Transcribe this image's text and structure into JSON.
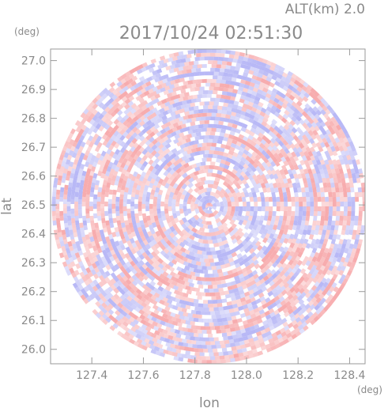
{
  "chart_data": {
    "type": "heatmap",
    "title": "2017/10/24 02:51:30",
    "subtitle": "ALT(km) 2.0",
    "xlabel": "lon",
    "ylabel": "lat",
    "x_unit": "(deg)",
    "y_unit": "(deg)",
    "xlim": [
      127.24,
      128.46
    ],
    "ylim": [
      25.95,
      27.04
    ],
    "x_ticks": [
      "127.4",
      "127.6",
      "127.8",
      "128.0",
      "128.2",
      "128.4"
    ],
    "y_ticks": [
      "26.0",
      "26.1",
      "26.2",
      "26.3",
      "26.4",
      "26.5",
      "26.6",
      "26.7",
      "26.8",
      "26.9",
      "27.0"
    ],
    "domain_center": {
      "lon": 127.855,
      "lat": 26.495
    },
    "domain_radius_lat": 0.545,
    "colors": {
      "positive": "#f7a8aa",
      "negative": "#b4b4f5",
      "neutral": "#ffffff",
      "frame": "#9a9a9a"
    }
  }
}
